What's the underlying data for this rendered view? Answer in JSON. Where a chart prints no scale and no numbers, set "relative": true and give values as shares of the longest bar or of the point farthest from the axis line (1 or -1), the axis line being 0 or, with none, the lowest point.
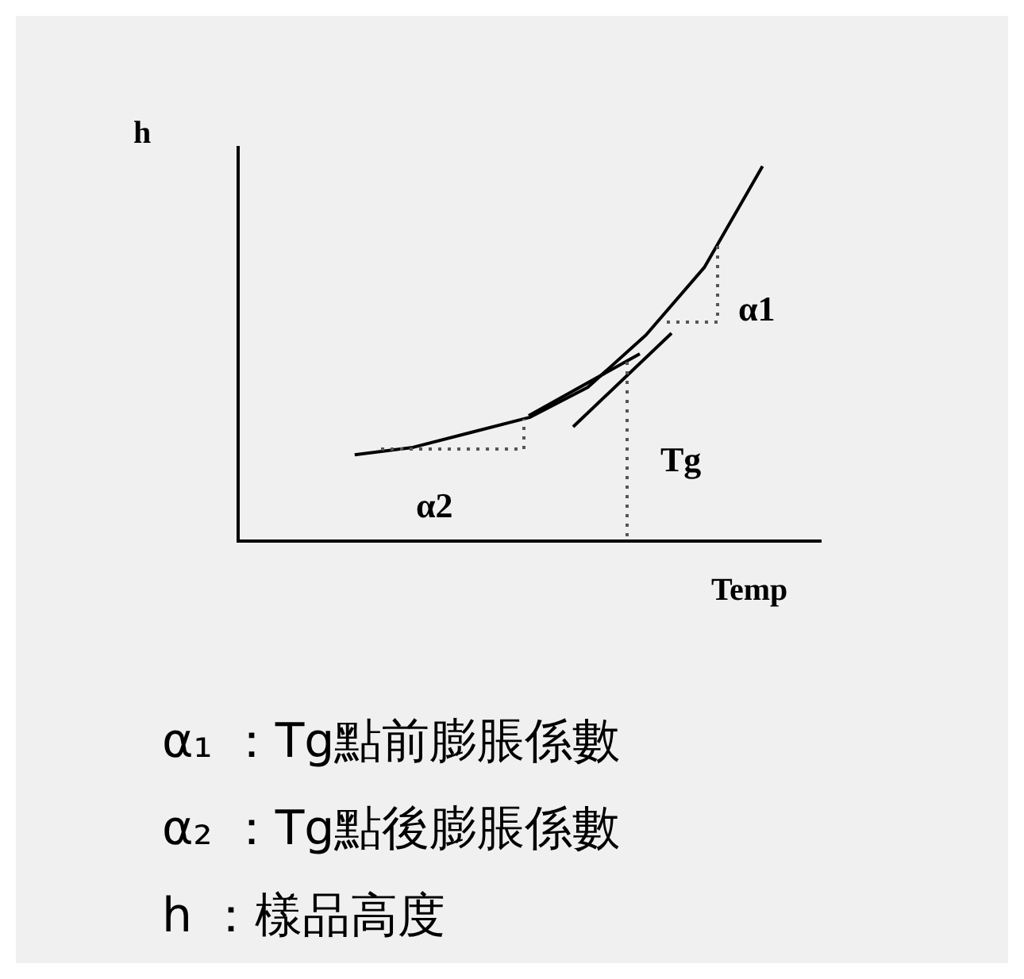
{
  "chart_data": {
    "type": "line",
    "relative": true,
    "xlabel": "Temp",
    "ylabel": "h",
    "grid": false,
    "legend": false,
    "marker": "none",
    "line_style": "solid",
    "color": "#000000",
    "categories": [
      null,
      null,
      null,
      null,
      null,
      null,
      null,
      null,
      null,
      null,
      null
    ],
    "values": [
      null,
      null,
      0.23,
      0.25,
      0.29,
      0.33,
      0.41,
      0.55,
      0.73,
      1,
      null
    ],
    "annotations": [
      "α1",
      "α2",
      "Tg",
      "α₁ ：Tg點前膨脹係數",
      "α₂ ：Tg點後膨脹係數",
      "h ：樣品高度"
    ]
  }
}
